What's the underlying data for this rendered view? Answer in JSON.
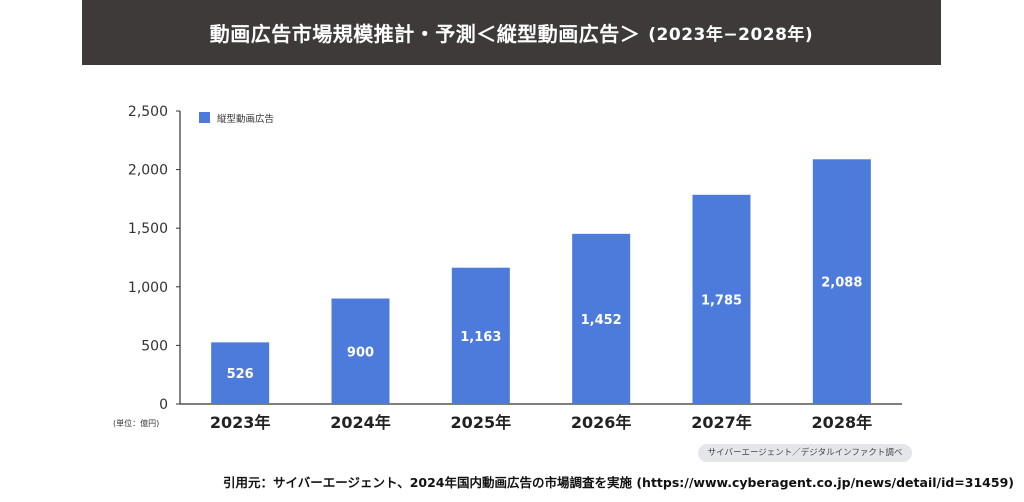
{
  "header": {
    "title": "動画広告市場規模推計・予測＜縦型動画広告＞",
    "period": "(2023年−2028年)"
  },
  "unit_note": "(単位：億円)",
  "source_badge": "サイバーエージェント／デジタルインファクト調べ",
  "citation": "引用元：サイバーエージェント、2024年国内動画広告の市場調査を実施 (https://www.cyberagent.co.jp/news/detail/id=31459)",
  "colors": {
    "bar": "#4d7bdb",
    "header_bg": "#3d3a39",
    "axis": "#333333"
  },
  "chart_data": {
    "type": "bar",
    "title": "動画広告市場規模推計・予測＜縦型動画広告＞",
    "categories": [
      "2023年",
      "2024年",
      "2025年",
      "2026年",
      "2027年",
      "2028年"
    ],
    "series": [
      {
        "name": "縦型動画広告",
        "values": [
          526,
          900,
          1163,
          1452,
          1785,
          2088
        ],
        "color": "#4d7bdb"
      }
    ],
    "data_labels": [
      "526",
      "900",
      "1,163",
      "1,452",
      "1,785",
      "2,088"
    ],
    "ylim": [
      0,
      2500
    ],
    "yticks": [
      0,
      500,
      1000,
      1500,
      2000,
      2500
    ],
    "ytick_labels": [
      "0",
      "500",
      "1,000",
      "1,500",
      "2,000",
      "2,500"
    ],
    "grid": false,
    "legend": "top-left",
    "xlabel": "",
    "ylabel": ""
  }
}
